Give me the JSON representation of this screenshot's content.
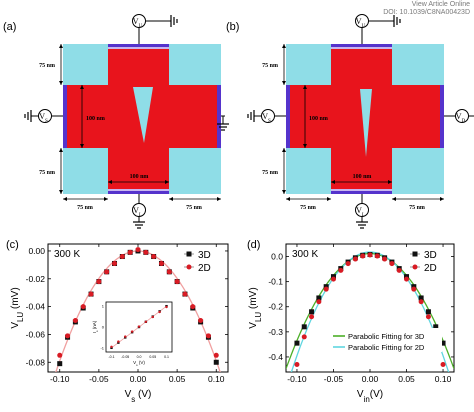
{
  "header": {
    "view_article": "View Article Online",
    "doi": "DOI: 10.1039/C8NA00423D"
  },
  "colors": {
    "device": "#e8141c",
    "pad": "#8fdde7",
    "contact": "#5533cc",
    "contact_light": "#c9b6f0",
    "series_3d": "#111111",
    "series_2d": "#d81b24",
    "fit_3d": "#4caf28",
    "fit_2d": "#5fd6e0",
    "curve_c": "#f0a0a0"
  },
  "schematics": [
    {
      "panel_label": "(a)",
      "probe_top": "V",
      "probe_top_sub": "U",
      "probe_left": "V",
      "probe_left_sub": "S",
      "probe_bottom": "V",
      "probe_bottom_sub": "L",
      "dim_pad_top": "75 nm",
      "dim_pad_bottom": "75 nm",
      "dim_height": "100 nm",
      "dim_width": "100 nm",
      "dim_left": "75 nm",
      "dim_right": "75 nm"
    },
    {
      "panel_label": "(b)",
      "probe_top": "V",
      "probe_top_sub": "U",
      "probe_left": "V",
      "probe_left_sub": "S",
      "probe_right": "V",
      "probe_right_sub": "D",
      "probe_bottom": "V",
      "probe_bottom_sub": "L",
      "dim_pad_top": "75 nm",
      "dim_pad_bottom": "75 nm",
      "dim_height": "100 nm",
      "dim_width": "100 nm",
      "dim_left": "75 nm",
      "dim_right": "75 nm"
    }
  ],
  "chart_data": [
    {
      "panel_label": "(c)",
      "type": "scatter",
      "annotation": "300 K",
      "xlabel": "V",
      "xlabel_sub": "s",
      "xlabel_unit": " (V)",
      "ylabel": "V",
      "ylabel_sub": "LU",
      "ylabel_unit": " (mV)",
      "xlim": [
        -0.115,
        0.115
      ],
      "ylim": [
        -0.087,
        0.005
      ],
      "xticks": [
        "-0.10",
        "-0.05",
        "0.00",
        "0.05",
        "0.10"
      ],
      "xtick_values": [
        -0.1,
        -0.05,
        0.0,
        0.05,
        0.1
      ],
      "yticks": [
        "0.00",
        "-0.02",
        "-0.04",
        "-0.06",
        "-0.08"
      ],
      "ytick_values": [
        0.0,
        -0.02,
        -0.04,
        -0.06,
        -0.08
      ],
      "legend": [
        "3D",
        "2D"
      ],
      "series": [
        {
          "name": "3D",
          "marker": "square",
          "x": [
            -0.1,
            -0.09,
            -0.08,
            -0.07,
            -0.06,
            -0.05,
            -0.04,
            -0.03,
            -0.02,
            -0.01,
            0.0,
            0.01,
            0.02,
            0.03,
            0.04,
            0.05,
            0.06,
            0.07,
            0.08,
            0.09,
            0.1
          ],
          "y": [
            -0.081,
            -0.062,
            -0.051,
            -0.041,
            -0.031,
            -0.022,
            -0.015,
            -0.009,
            -0.004,
            -0.001,
            0.0,
            -0.001,
            -0.004,
            -0.009,
            -0.015,
            -0.022,
            -0.031,
            -0.041,
            -0.051,
            -0.062,
            -0.08
          ]
        },
        {
          "name": "2D",
          "marker": "circle",
          "x": [
            -0.1,
            -0.09,
            -0.08,
            -0.07,
            -0.06,
            -0.05,
            -0.04,
            -0.03,
            -0.02,
            -0.01,
            0.0,
            0.01,
            0.02,
            0.03,
            0.04,
            0.05,
            0.06,
            0.07,
            0.08,
            0.09,
            0.1
          ],
          "y": [
            -0.075,
            -0.061,
            -0.05,
            -0.04,
            -0.031,
            -0.022,
            -0.015,
            -0.009,
            -0.004,
            -0.001,
            0.001,
            -0.001,
            -0.004,
            -0.009,
            -0.015,
            -0.022,
            -0.031,
            -0.04,
            -0.05,
            -0.061,
            -0.075
          ]
        },
        {
          "marker": "line",
          "x": [
            -0.1,
            -0.075,
            -0.05,
            -0.025,
            0.0,
            0.025,
            0.05,
            0.075,
            0.1
          ],
          "y": [
            -0.079,
            -0.046,
            -0.022,
            -0.006,
            0.0,
            -0.006,
            -0.022,
            -0.046,
            -0.079
          ]
        }
      ],
      "inset": {
        "xlabel": "V",
        "xlabel_sub": "s",
        "xlabel_unit": " (V)",
        "ylabel": "I",
        "ylabel_sub": "s",
        "ylabel_unit": " (nA)",
        "xlim": [
          -0.12,
          0.12
        ],
        "ylim": [
          -1.2,
          1.2
        ],
        "xticks": [
          "-0.1",
          "-0.05",
          "0.0",
          "0.05",
          "0.1"
        ],
        "xtick_values": [
          -0.1,
          -0.05,
          0.0,
          0.05,
          0.1
        ],
        "yticks": [
          "-1",
          "0",
          "1"
        ],
        "ytick_values": [
          -1,
          0,
          1
        ],
        "series": [
          {
            "marker": "square",
            "x": [
              -0.1,
              -0.075,
              -0.05,
              -0.025,
              0.0,
              0.025,
              0.05,
              0.075,
              0.1
            ],
            "y": [
              -1.0,
              -0.75,
              -0.5,
              -0.25,
              0.0,
              0.25,
              0.5,
              0.75,
              1.0
            ]
          },
          {
            "marker": "circle",
            "x": [
              -0.1,
              -0.075,
              -0.05,
              -0.025,
              0.0,
              0.025,
              0.05,
              0.075,
              0.1
            ],
            "y": [
              -0.95,
              -0.7,
              -0.46,
              -0.22,
              0.02,
              0.25,
              0.48,
              0.72,
              0.96
            ]
          }
        ]
      }
    },
    {
      "panel_label": "(d)",
      "type": "scatter",
      "annotation": "300 K",
      "xlabel": "V",
      "xlabel_sub": "in",
      "xlabel_unit": "(V)",
      "ylabel": "V",
      "ylabel_sub": "LU",
      "ylabel_unit": " (mV)",
      "xlim": [
        -0.115,
        0.115
      ],
      "ylim": [
        -0.46,
        0.05
      ],
      "xticks": [
        "-0.10",
        "-0.05",
        "0.00",
        "0.05",
        "0.10"
      ],
      "xtick_values": [
        -0.1,
        -0.05,
        0.0,
        0.05,
        0.1
      ],
      "yticks": [
        "0.0",
        "-0.1",
        "-0.2",
        "-0.3",
        "-0.4"
      ],
      "ytick_values": [
        0.0,
        -0.1,
        -0.2,
        -0.3,
        -0.4
      ],
      "legend": [
        "3D",
        "2D"
      ],
      "series": [
        {
          "name": "3D",
          "marker": "square",
          "x": [
            -0.1,
            -0.09,
            -0.08,
            -0.07,
            -0.06,
            -0.05,
            -0.04,
            -0.03,
            -0.02,
            -0.01,
            0.0,
            0.01,
            0.02,
            0.03,
            0.04,
            0.05,
            0.06,
            0.07,
            0.08,
            0.09,
            0.1
          ],
          "y": [
            -0.345,
            -0.28,
            -0.22,
            -0.165,
            -0.12,
            -0.08,
            -0.048,
            -0.022,
            -0.005,
            0.005,
            0.008,
            0.005,
            -0.005,
            -0.022,
            -0.048,
            -0.08,
            -0.12,
            -0.165,
            -0.22,
            -0.28,
            -0.345
          ]
        },
        {
          "name": "2D",
          "marker": "circle",
          "x": [
            -0.1,
            -0.09,
            -0.08,
            -0.07,
            -0.06,
            -0.05,
            -0.04,
            -0.03,
            -0.02,
            -0.01,
            0.0,
            0.01,
            0.02,
            0.03,
            0.04,
            0.05,
            0.06,
            0.07,
            0.08,
            0.09,
            0.1
          ],
          "y": [
            -0.43,
            -0.32,
            -0.24,
            -0.18,
            -0.13,
            -0.09,
            -0.055,
            -0.028,
            -0.01,
            0.002,
            0.006,
            0.002,
            -0.01,
            -0.028,
            -0.055,
            -0.09,
            -0.13,
            -0.18,
            -0.24,
            -0.32,
            -0.43
          ]
        },
        {
          "name": "Parabolic Fitting for 3D",
          "marker": "line",
          "x": [
            -0.1,
            -0.075,
            -0.05,
            -0.025,
            0.0,
            0.025,
            0.05,
            0.075,
            0.1
          ],
          "y": [
            -0.335,
            -0.183,
            -0.075,
            -0.01,
            0.012,
            -0.01,
            -0.075,
            -0.183,
            -0.335
          ]
        },
        {
          "name": "Parabolic Fitting for 2D",
          "marker": "line",
          "x": [
            -0.1,
            -0.075,
            -0.05,
            -0.025,
            0.0,
            0.025,
            0.05,
            0.075,
            0.1
          ],
          "y": [
            -0.395,
            -0.214,
            -0.085,
            -0.008,
            0.018,
            -0.008,
            -0.085,
            -0.214,
            -0.395
          ]
        }
      ]
    }
  ]
}
